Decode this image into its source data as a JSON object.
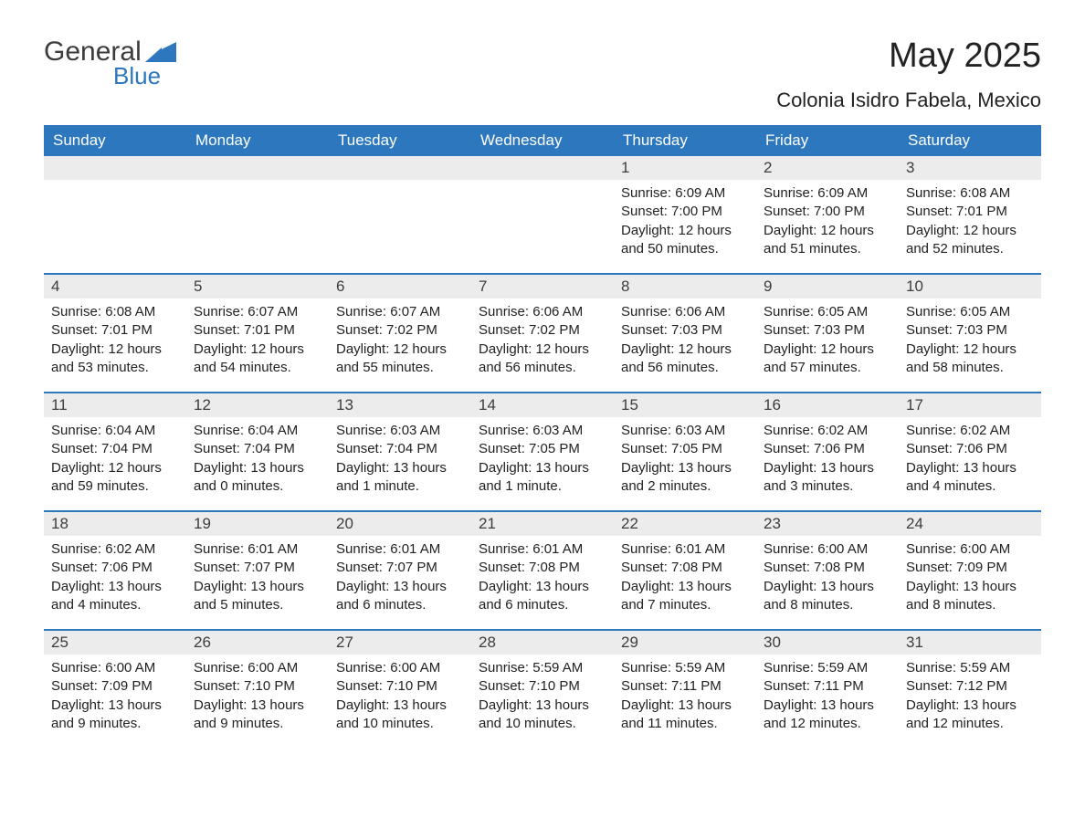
{
  "brand": {
    "word1": "General",
    "word2": "Blue",
    "logo_fill": "#2c77bd"
  },
  "title": "May 2025",
  "subtitle": "Colonia Isidro Fabela, Mexico",
  "colors": {
    "header_bg": "#2c77bd",
    "header_text": "#ffffff",
    "daynum_bg": "#ececec",
    "text": "#222222",
    "rule": "#2c77bd"
  },
  "days_of_week": [
    "Sunday",
    "Monday",
    "Tuesday",
    "Wednesday",
    "Thursday",
    "Friday",
    "Saturday"
  ],
  "weeks": [
    [
      null,
      null,
      null,
      null,
      {
        "n": "1",
        "sr": "6:09 AM",
        "ss": "7:00 PM",
        "dl": "12 hours and 50 minutes."
      },
      {
        "n": "2",
        "sr": "6:09 AM",
        "ss": "7:00 PM",
        "dl": "12 hours and 51 minutes."
      },
      {
        "n": "3",
        "sr": "6:08 AM",
        "ss": "7:01 PM",
        "dl": "12 hours and 52 minutes."
      }
    ],
    [
      {
        "n": "4",
        "sr": "6:08 AM",
        "ss": "7:01 PM",
        "dl": "12 hours and 53 minutes."
      },
      {
        "n": "5",
        "sr": "6:07 AM",
        "ss": "7:01 PM",
        "dl": "12 hours and 54 minutes."
      },
      {
        "n": "6",
        "sr": "6:07 AM",
        "ss": "7:02 PM",
        "dl": "12 hours and 55 minutes."
      },
      {
        "n": "7",
        "sr": "6:06 AM",
        "ss": "7:02 PM",
        "dl": "12 hours and 56 minutes."
      },
      {
        "n": "8",
        "sr": "6:06 AM",
        "ss": "7:03 PM",
        "dl": "12 hours and 56 minutes."
      },
      {
        "n": "9",
        "sr": "6:05 AM",
        "ss": "7:03 PM",
        "dl": "12 hours and 57 minutes."
      },
      {
        "n": "10",
        "sr": "6:05 AM",
        "ss": "7:03 PM",
        "dl": "12 hours and 58 minutes."
      }
    ],
    [
      {
        "n": "11",
        "sr": "6:04 AM",
        "ss": "7:04 PM",
        "dl": "12 hours and 59 minutes."
      },
      {
        "n": "12",
        "sr": "6:04 AM",
        "ss": "7:04 PM",
        "dl": "13 hours and 0 minutes."
      },
      {
        "n": "13",
        "sr": "6:03 AM",
        "ss": "7:04 PM",
        "dl": "13 hours and 1 minute."
      },
      {
        "n": "14",
        "sr": "6:03 AM",
        "ss": "7:05 PM",
        "dl": "13 hours and 1 minute."
      },
      {
        "n": "15",
        "sr": "6:03 AM",
        "ss": "7:05 PM",
        "dl": "13 hours and 2 minutes."
      },
      {
        "n": "16",
        "sr": "6:02 AM",
        "ss": "7:06 PM",
        "dl": "13 hours and 3 minutes."
      },
      {
        "n": "17",
        "sr": "6:02 AM",
        "ss": "7:06 PM",
        "dl": "13 hours and 4 minutes."
      }
    ],
    [
      {
        "n": "18",
        "sr": "6:02 AM",
        "ss": "7:06 PM",
        "dl": "13 hours and 4 minutes."
      },
      {
        "n": "19",
        "sr": "6:01 AM",
        "ss": "7:07 PM",
        "dl": "13 hours and 5 minutes."
      },
      {
        "n": "20",
        "sr": "6:01 AM",
        "ss": "7:07 PM",
        "dl": "13 hours and 6 minutes."
      },
      {
        "n": "21",
        "sr": "6:01 AM",
        "ss": "7:08 PM",
        "dl": "13 hours and 6 minutes."
      },
      {
        "n": "22",
        "sr": "6:01 AM",
        "ss": "7:08 PM",
        "dl": "13 hours and 7 minutes."
      },
      {
        "n": "23",
        "sr": "6:00 AM",
        "ss": "7:08 PM",
        "dl": "13 hours and 8 minutes."
      },
      {
        "n": "24",
        "sr": "6:00 AM",
        "ss": "7:09 PM",
        "dl": "13 hours and 8 minutes."
      }
    ],
    [
      {
        "n": "25",
        "sr": "6:00 AM",
        "ss": "7:09 PM",
        "dl": "13 hours and 9 minutes."
      },
      {
        "n": "26",
        "sr": "6:00 AM",
        "ss": "7:10 PM",
        "dl": "13 hours and 9 minutes."
      },
      {
        "n": "27",
        "sr": "6:00 AM",
        "ss": "7:10 PM",
        "dl": "13 hours and 10 minutes."
      },
      {
        "n": "28",
        "sr": "5:59 AM",
        "ss": "7:10 PM",
        "dl": "13 hours and 10 minutes."
      },
      {
        "n": "29",
        "sr": "5:59 AM",
        "ss": "7:11 PM",
        "dl": "13 hours and 11 minutes."
      },
      {
        "n": "30",
        "sr": "5:59 AM",
        "ss": "7:11 PM",
        "dl": "13 hours and 12 minutes."
      },
      {
        "n": "31",
        "sr": "5:59 AM",
        "ss": "7:12 PM",
        "dl": "13 hours and 12 minutes."
      }
    ]
  ],
  "labels": {
    "sunrise": "Sunrise:",
    "sunset": "Sunset:",
    "daylight": "Daylight:"
  }
}
